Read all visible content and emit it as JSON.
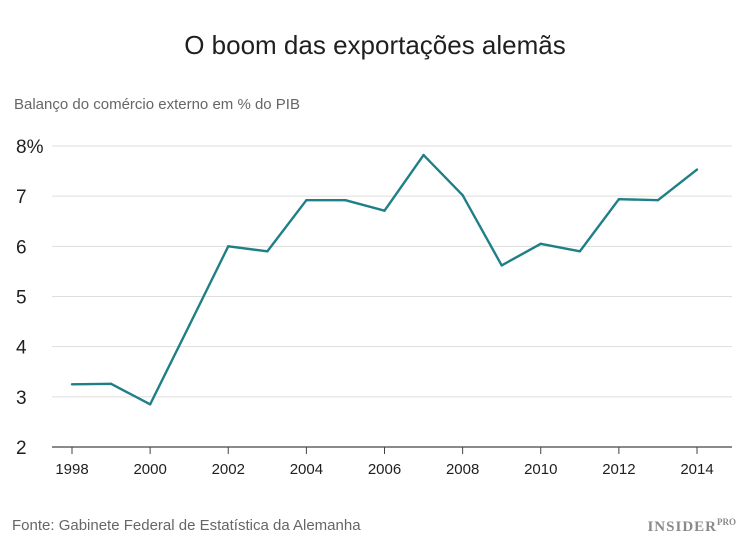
{
  "title": "O boom das exportações alemãs",
  "source": "Fonte: Gabinete Federal de Estatística da Alemanha",
  "brand": {
    "name": "INSIDER",
    "suffix": "PRO"
  },
  "colors": {
    "line": "#1f7f87",
    "grid": "#dddddd",
    "axis": "#444444"
  },
  "chart_data": {
    "type": "line",
    "title": "O boom das exportações alemãs",
    "ylabel": "Balanço do comércio externo em % do PIB",
    "xlabel": "",
    "x": [
      1998,
      1999,
      2000,
      2001,
      2002,
      2003,
      2004,
      2005,
      2006,
      2007,
      2008,
      2009,
      2010,
      2011,
      2012,
      2013,
      2014
    ],
    "series": [
      {
        "values": [
          3.25,
          3.26,
          2.85,
          4.42,
          6.0,
          5.9,
          6.92,
          6.92,
          6.71,
          7.82,
          7.02,
          5.62,
          6.05,
          5.9,
          6.94,
          6.92,
          7.53
        ]
      }
    ],
    "ylim": [
      2,
      8
    ],
    "xlim": [
      1998,
      2014
    ],
    "yticks": [
      "2",
      "3",
      "4",
      "5",
      "6",
      "7",
      "8%"
    ],
    "xticks": [
      "1998",
      "2000",
      "2002",
      "2004",
      "2006",
      "2008",
      "2010",
      "2012",
      "2014"
    ],
    "grid": true,
    "legend": "none"
  }
}
